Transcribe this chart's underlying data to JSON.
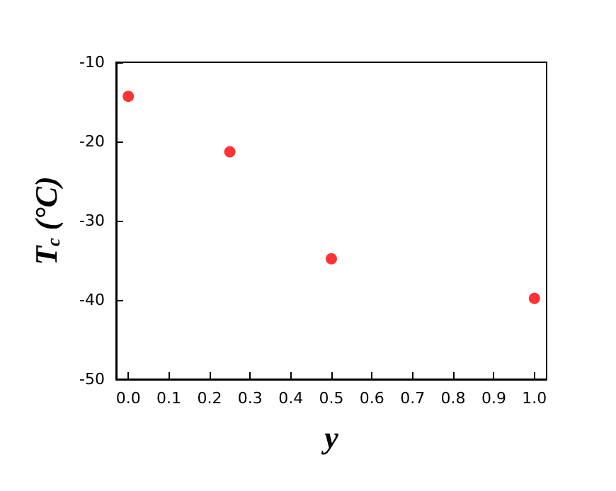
{
  "chart_data": {
    "type": "scatter",
    "xlabel": "y",
    "ylabel": "T$_{c}$ (°C)",
    "x": [
      0,
      0.25,
      0.5,
      1.0
    ],
    "series": [
      {
        "color": "#ff0000",
        "values": [
          -14.3,
          -21.3,
          -34.8,
          -39.8
        ]
      }
    ],
    "xlim": [
      -0.03,
      1.03
    ],
    "xticks": [
      {
        "value": 0,
        "label": "0.0"
      },
      {
        "value": 0.1,
        "label": "0.1"
      },
      {
        "value": 0.2,
        "label": "0.2"
      },
      {
        "value": 0.3,
        "label": "0.3"
      },
      {
        "value": 0.4,
        "label": "0.4"
      },
      {
        "value": 0.5,
        "label": "0.5"
      },
      {
        "value": 0.6,
        "label": "0.6"
      },
      {
        "value": 0.7,
        "label": "0.7"
      },
      {
        "value": 0.8,
        "label": "0.8"
      },
      {
        "value": 0.9,
        "label": "0.9"
      },
      {
        "value": 1.0,
        "label": "1.0"
      }
    ],
    "ylim": [
      -50,
      -10
    ],
    "yticks": [
      -50,
      -40,
      -30,
      -20,
      -10
    ],
    "grid": false,
    "marker": "circle"
  }
}
